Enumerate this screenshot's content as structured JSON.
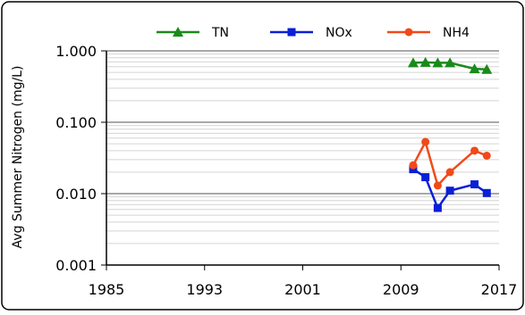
{
  "chart_data": {
    "type": "line",
    "ylabel": "Avg Summer Nitrogen (mg/L)",
    "xlabel": "",
    "x_range": [
      1985,
      2017
    ],
    "x_ticks": [
      "1985",
      "1993",
      "2001",
      "2009",
      "2017"
    ],
    "y_scale": "log",
    "y_range": [
      0.001,
      1.0
    ],
    "y_ticks": [
      "0.001",
      "0.010",
      "0.100",
      "1.000"
    ],
    "grid": "horizontal",
    "legend_position": "top",
    "series": [
      {
        "name": "TN",
        "color": "#1a8a1a",
        "marker": "triangle",
        "x": [
          2010,
          2011,
          2012,
          2013,
          2015,
          2016
        ],
        "y": [
          0.68,
          0.69,
          0.68,
          0.68,
          0.56,
          0.55
        ]
      },
      {
        "name": "NOx",
        "color": "#0a1fd6",
        "marker": "square",
        "x": [
          2010,
          2011,
          2012,
          2013,
          2015,
          2016
        ],
        "y": [
          0.022,
          0.017,
          0.0063,
          0.011,
          0.0135,
          0.0102
        ]
      },
      {
        "name": "NH4",
        "color": "#f04a1a",
        "marker": "circle",
        "x": [
          2010,
          2011,
          2012,
          2013,
          2015,
          2016
        ],
        "y": [
          0.025,
          0.053,
          0.013,
          0.02,
          0.04,
          0.034
        ]
      }
    ]
  }
}
